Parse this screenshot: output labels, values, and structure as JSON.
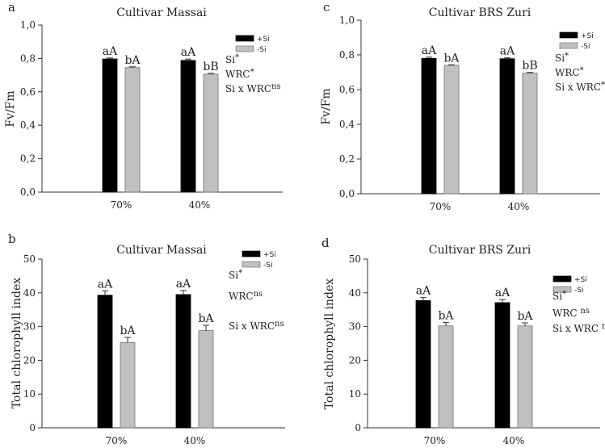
{
  "chart_data": [
    {
      "panel_label": "a",
      "type": "bar",
      "title": "Cultivar Massai",
      "xlabel": "",
      "ylabel": "Fv/Fm",
      "ylim": [
        0,
        1.0
      ],
      "yticks": [
        "0,0",
        "0,2",
        "0,4",
        "0,6",
        "0,8",
        "1,0"
      ],
      "categories": [
        "70%",
        "40%"
      ],
      "series": [
        {
          "name": "+Si",
          "color": "#000000",
          "values": [
            0.797,
            0.788
          ],
          "errors": [
            0.006,
            0.008
          ]
        },
        {
          "name": "-Si",
          "color": "#c0c0c0",
          "values": [
            0.745,
            0.706
          ],
          "errors": [
            0.005,
            0.005
          ]
        }
      ],
      "bar_labels": [
        [
          "aA",
          "aA"
        ],
        [
          "bA",
          "bB"
        ]
      ],
      "stats": [
        {
          "base": "Si",
          "sup": "*"
        },
        {
          "base": "WRC",
          "sup": "*"
        },
        {
          "base": "Si x WRC",
          "sup": "ns"
        }
      ],
      "legend_position": "top-right"
    },
    {
      "panel_label": "c",
      "type": "bar",
      "title": "Cultivar BRS Zuri",
      "xlabel": "",
      "ylabel": "Fv/Fm",
      "ylim": [
        0,
        1.0
      ],
      "yticks": [
        "0,0",
        "0,2",
        "0,4",
        "0,6",
        "0,8",
        "1,0"
      ],
      "categories": [
        "70%",
        "40%"
      ],
      "series": [
        {
          "name": "+Si",
          "color": "#000000",
          "values": [
            0.78,
            0.778
          ],
          "errors": [
            0.007,
            0.005
          ]
        },
        {
          "name": "-Si",
          "color": "#c0c0c0",
          "values": [
            0.74,
            0.695
          ],
          "errors": [
            0.003,
            0.004
          ]
        }
      ],
      "bar_labels": [
        [
          "aA",
          "aA"
        ],
        [
          "bA",
          "bB"
        ]
      ],
      "stats": [
        {
          "base": "Si",
          "sup": "*"
        },
        {
          "base": "WRC",
          "sup": "*"
        },
        {
          "base": "Si x WRC",
          "sup": "*"
        }
      ],
      "legend_position": "top-right"
    },
    {
      "panel_label": "b",
      "type": "bar",
      "title": "Cultivar Massai",
      "xlabel": "",
      "ylabel": "Total chlorophyll index",
      "ylim": [
        0,
        50
      ],
      "yticks": [
        "0",
        "10",
        "20",
        "30",
        "40",
        "50"
      ],
      "categories": [
        "70%",
        "40%"
      ],
      "series": [
        {
          "name": "+Si",
          "color": "#000000",
          "values": [
            39.3,
            39.5
          ],
          "errors": [
            1.3,
            1.2
          ]
        },
        {
          "name": "-Si",
          "color": "#c0c0c0",
          "values": [
            25.3,
            28.8
          ],
          "errors": [
            1.5,
            1.6
          ]
        }
      ],
      "bar_labels": [
        [
          "aA",
          "aA"
        ],
        [
          "bA",
          "bA"
        ]
      ],
      "stats": [
        {
          "base": "Si",
          "sup": "*"
        },
        {
          "base": "WRC",
          "sup": "ns"
        },
        {
          "base": "Si x WRC",
          "sup": "ns"
        }
      ],
      "legend_position": "top-right"
    },
    {
      "panel_label": "d",
      "type": "bar",
      "title": "Cultivar BRS Zuri",
      "xlabel": "",
      "ylabel": "Total chlorophyll index",
      "ylim": [
        0,
        50
      ],
      "yticks": [
        "0",
        "10",
        "20",
        "30",
        "40",
        "50"
      ],
      "categories": [
        "70%",
        "40%"
      ],
      "series": [
        {
          "name": "+Si",
          "color": "#000000",
          "values": [
            37.7,
            37.1
          ],
          "errors": [
            0.9,
            0.9
          ]
        },
        {
          "name": "-Si",
          "color": "#c0c0c0",
          "values": [
            30.2,
            30.2
          ],
          "errors": [
            1.0,
            0.9
          ]
        }
      ],
      "bar_labels": [
        [
          "aA",
          "aA"
        ],
        [
          "bA",
          "bA"
        ]
      ],
      "stats": [
        {
          "base": "Si",
          "sup": "*"
        },
        {
          "base": "WRC ",
          "sup": "ns"
        },
        {
          "base": "Si x WRC ",
          "sup": "ns"
        }
      ],
      "legend_position": "top-right"
    }
  ]
}
